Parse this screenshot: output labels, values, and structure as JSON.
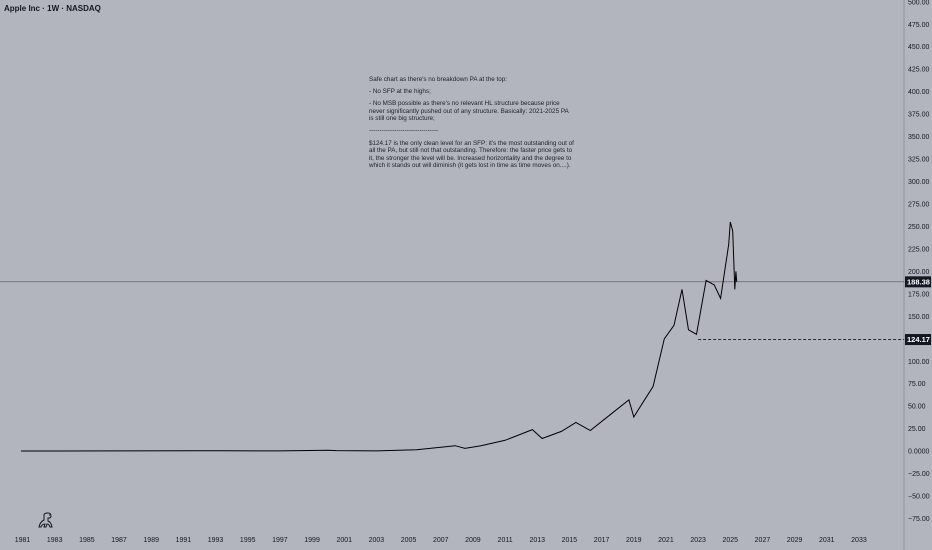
{
  "header": {
    "title": "Apple Inc · 1W · NASDAQ"
  },
  "annotation": {
    "lines": [
      "Safe chart as there's no breakdown PA at the top:",
      "- No SFP at the highs;",
      "- No MSB possible as there's no relevant HL structure because price never significantly pushed out of any structure. Basically: 2021-2025 PA is still one big structure;",
      "---------------------------------",
      "$124.17 is the only clean level for an SFP: it's the most outstanding out of all the PA, but still not that outstanding. Therefore: the faster price gets to it, the stronger the level will be. Increased horizontality and the degree to which it stands out will diminish (it gets lost in time as time moves on....)."
    ]
  },
  "colors": {
    "background": "#b2b5be",
    "line": "#000000",
    "tag": "#131722",
    "guide": "#50535e"
  },
  "icons": {
    "logo": "dino-logo-icon"
  },
  "chart_data": {
    "type": "line",
    "title": "Apple Inc · 1W · NASDAQ",
    "xlabel": "",
    "ylabel": "",
    "xlim": [
      1979.6,
      2035.8
    ],
    "ylim": [
      -90,
      502
    ],
    "grid": false,
    "x_ticks": [
      "1981",
      "1983",
      "1985",
      "1987",
      "1989",
      "1991",
      "1993",
      "1995",
      "1997",
      "1999",
      "2001",
      "2003",
      "2005",
      "2007",
      "2009",
      "2011",
      "2013",
      "2015",
      "2017",
      "2019",
      "2021",
      "2023",
      "2025",
      "2027",
      "2029",
      "2031",
      "2033"
    ],
    "y_ticks": [
      "500.00",
      "475.00",
      "450.00",
      "425.00",
      "400.00",
      "375.00",
      "350.00",
      "325.00",
      "300.00",
      "275.00",
      "250.00",
      "225.00",
      "200.00",
      "175.00",
      "150.00",
      "125.00",
      "100.00",
      "75.00",
      "50.00",
      "25.00",
      "0.0000",
      "−25.00",
      "−50.00",
      "−75.00"
    ],
    "y_tick_values": [
      500,
      475,
      450,
      425,
      400,
      375,
      350,
      325,
      300,
      275,
      250,
      225,
      200,
      175,
      150,
      125,
      100,
      75,
      50,
      25,
      0,
      -25,
      -50,
      -75
    ],
    "price_levels": [
      {
        "value": 188.38,
        "label": "188.38",
        "style": "solid",
        "x_start": 1979.6
      },
      {
        "value": 124.17,
        "label": "124.17",
        "style": "dashed",
        "x_start": 2023.0
      }
    ],
    "series": [
      {
        "x": [
          1980.9,
          1983,
          1987,
          1991.5,
          1993.5,
          1997,
          2000.0,
          2000.5,
          2003,
          2005.5,
          2007.9,
          2008.5,
          2009.5,
          2011,
          2012.7,
          2013.3,
          2014.5,
          2015.4,
          2016.3,
          2017.5,
          2018.7,
          2019.0,
          2019.6,
          2020.2,
          2020.9,
          2021.5,
          2022.0,
          2022.4,
          2022.9,
          2023.5,
          2024.0,
          2024.4,
          2024.9,
          2025.0,
          2025.15,
          2025.28,
          2025.35,
          2025.4
        ],
        "y": [
          0.1,
          0.1,
          0.3,
          0.5,
          0.4,
          0.2,
          1.0,
          0.6,
          0.3,
          1.5,
          6,
          3,
          6,
          12,
          24,
          14,
          22,
          32,
          23,
          40,
          57,
          38,
          55,
          72,
          125,
          140,
          180,
          135,
          130,
          190,
          185,
          170,
          230,
          255,
          245,
          180,
          200,
          188.38
        ]
      }
    ]
  }
}
